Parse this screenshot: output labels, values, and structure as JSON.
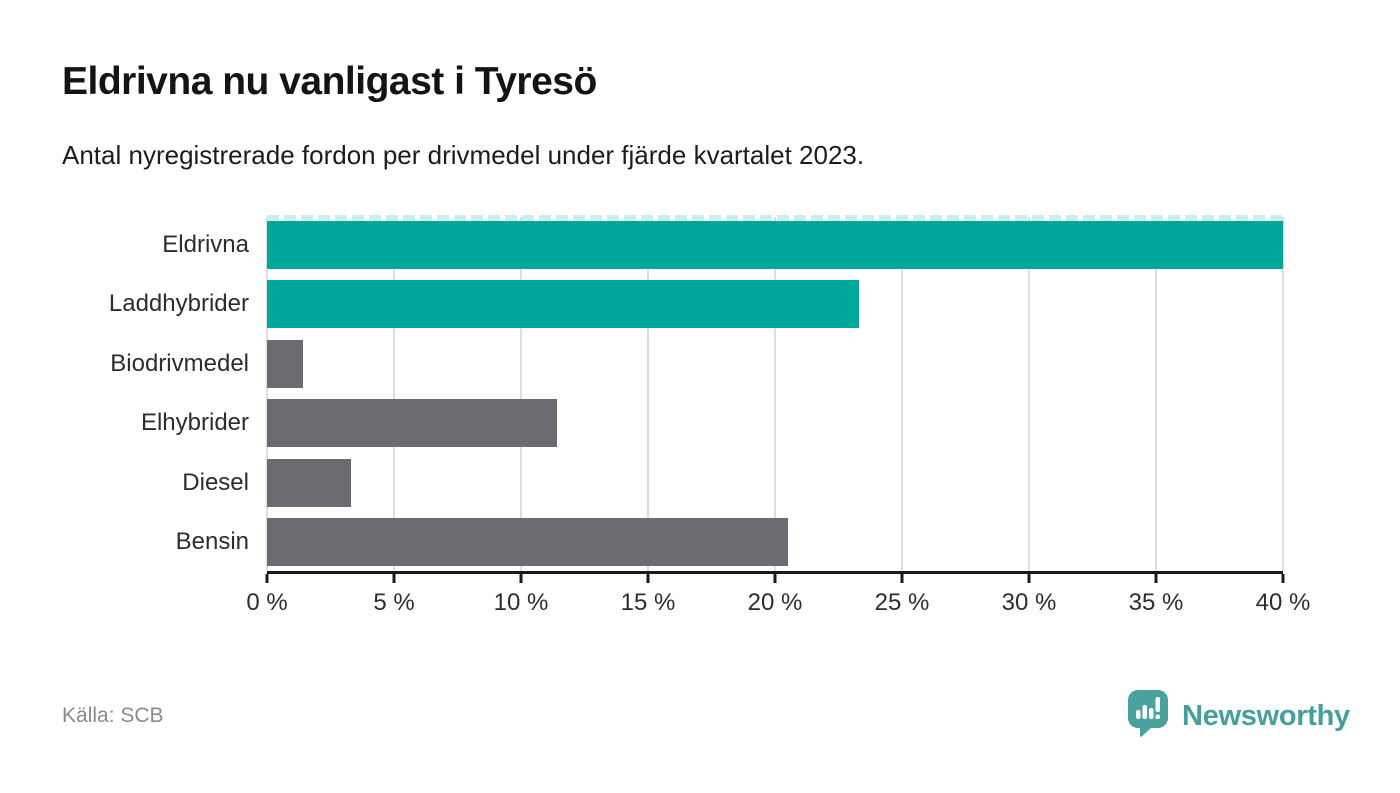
{
  "chart_data": {
    "type": "bar",
    "orientation": "horizontal",
    "title": "Eldrivna nu vanligast i Tyresö",
    "subtitle": "Antal nyregistrerade fordon per drivmedel under fjärde kvartalet 2023.",
    "categories": [
      "Eldrivna",
      "Laddhybrider",
      "Biodrivmedel",
      "Elhybrider",
      "Diesel",
      "Bensin"
    ],
    "values": [
      40.0,
      23.3,
      1.4,
      11.4,
      3.3,
      20.5
    ],
    "unit": "%",
    "xlabel": "",
    "ylabel": "",
    "xlim": [
      0,
      40
    ],
    "x_ticks": [
      0,
      5,
      10,
      15,
      20,
      25,
      30,
      35,
      40
    ],
    "x_tick_labels": [
      "0 %",
      "5 %",
      "10 %",
      "15 %",
      "20 %",
      "25 %",
      "30 %",
      "35 %",
      "40 %"
    ],
    "grid": "vertical-only",
    "legend": "none",
    "highlighted_categories": [
      "Eldrivna",
      "Laddhybrider"
    ],
    "clipped_bar": "Eldrivna",
    "colors": {
      "highlight": "#00a79b",
      "default": "#6d6a71",
      "clipped_dash": "#cdeeec"
    }
  },
  "footer": {
    "source": "Källa: SCB",
    "brand": "Newsworthy",
    "brand_color": "#43a09b"
  }
}
